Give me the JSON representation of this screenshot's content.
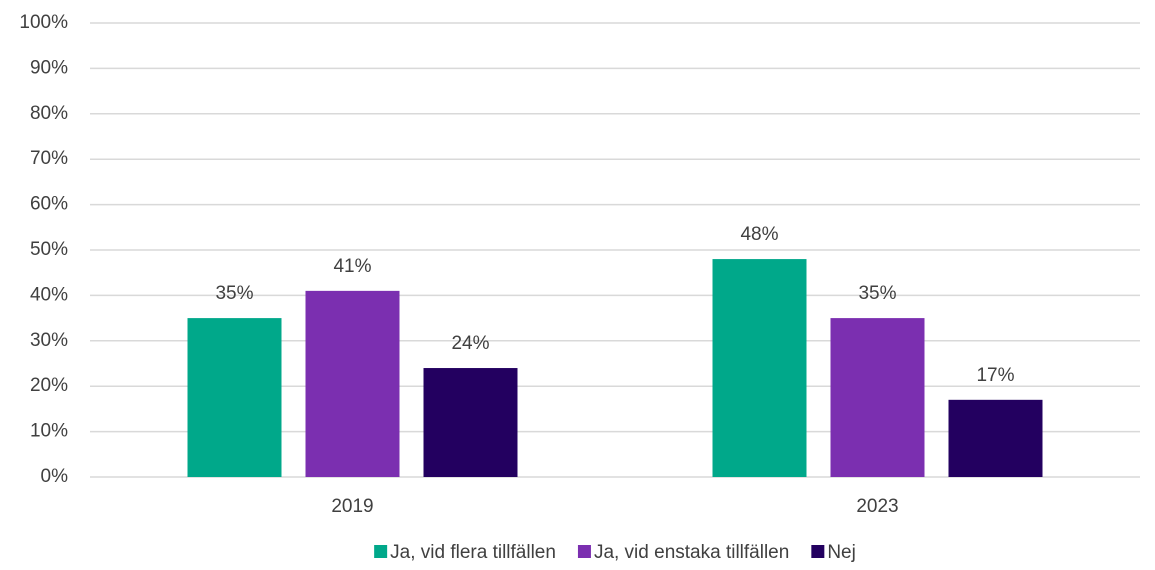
{
  "chart_data": {
    "type": "bar",
    "categories": [
      "2019",
      "2023"
    ],
    "series": [
      {
        "name": "Ja, vid flera tillfällen",
        "color": "#00a88a",
        "values": [
          35,
          48
        ],
        "value_labels": [
          "35%",
          "48%"
        ]
      },
      {
        "name": "Ja, vid enstaka tillfällen",
        "color": "#7b2fb0",
        "values": [
          41,
          35
        ],
        "value_labels": [
          "41%",
          "35%"
        ]
      },
      {
        "name": "Nej",
        "color": "#230060",
        "values": [
          24,
          17
        ],
        "value_labels": [
          "24%",
          "17%"
        ]
      }
    ],
    "ylim": [
      0,
      100
    ],
    "yticks": [
      {
        "value": 0,
        "label": "0%"
      },
      {
        "value": 10,
        "label": "10%"
      },
      {
        "value": 20,
        "label": "20%"
      },
      {
        "value": 30,
        "label": "30%"
      },
      {
        "value": 40,
        "label": "40%"
      },
      {
        "value": 50,
        "label": "50%"
      },
      {
        "value": 60,
        "label": "60%"
      },
      {
        "value": 70,
        "label": "70%"
      },
      {
        "value": 80,
        "label": "80%"
      },
      {
        "value": 90,
        "label": "90%"
      },
      {
        "value": 100,
        "label": "100%"
      }
    ],
    "grid": true,
    "legend": "bottom"
  }
}
